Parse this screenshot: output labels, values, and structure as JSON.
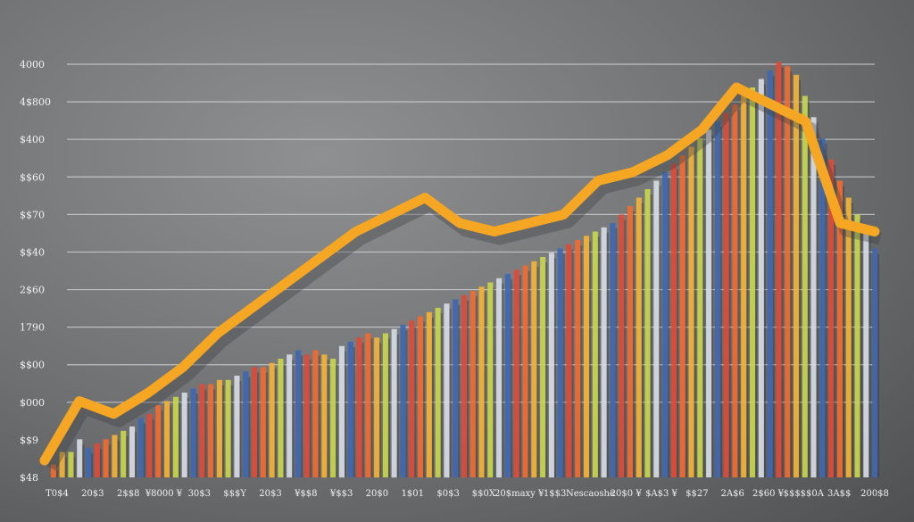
{
  "chart_data": {
    "type": "bar",
    "title": "",
    "xlabel": "",
    "ylabel": "",
    "grid": true,
    "legend": "none",
    "y_tick_labels": [
      "4000",
      "4$800",
      "$400",
      "$$60",
      "$$70",
      "$$40",
      "2$60",
      "1790",
      "$$00",
      "$000",
      "$$9",
      "$48"
    ],
    "x_tick_labels": [
      "T0$4",
      "20$3",
      "2$$8",
      "¥8000 ¥",
      "30$3",
      "$$$Y",
      "20$3",
      "¥$$8",
      "¥$$3",
      "20$0",
      "1$01",
      "$0$3",
      "$$0X",
      "20$maxy ¥",
      "1$$3",
      "Nescaoshe",
      "20$0 ¥",
      "$A$3 ¥",
      "$$27",
      "2A$6",
      "2$60 ¥",
      "$$$$$0A",
      "3A$$",
      "200$8"
    ],
    "colors": [
      "#f26a2e",
      "#f4b233",
      "#c8d64a",
      "#d6dbe4",
      "#3f67b1",
      "#e04a36"
    ],
    "trend_color": "#f5a623",
    "series": [
      {
        "type": "bar",
        "values": [
          3,
          6,
          6,
          9,
          7,
          8,
          9,
          10,
          11,
          12,
          14,
          15,
          17,
          18,
          19,
          20,
          21,
          22,
          22,
          23,
          23,
          24,
          25,
          26,
          26,
          27,
          28,
          29,
          30,
          29,
          30,
          29,
          28,
          31,
          32,
          33,
          34,
          33,
          34,
          35,
          36,
          37,
          38,
          39,
          40,
          41,
          42,
          43,
          44,
          45,
          46,
          47,
          48,
          49,
          50,
          51,
          52,
          53,
          54,
          55,
          56,
          57,
          58,
          59,
          60,
          62,
          64,
          66,
          68,
          70,
          72,
          74,
          76,
          78,
          80,
          82,
          84,
          86,
          88,
          90,
          92,
          94,
          96,
          98,
          97,
          95,
          90,
          85,
          80,
          75,
          70,
          66,
          62,
          58,
          54
        ]
      },
      {
        "type": "line",
        "values": [
          4,
          18,
          15,
          20,
          26,
          34,
          40,
          46,
          52,
          58,
          62,
          66,
          60,
          58,
          60,
          62,
          70,
          72,
          76,
          82,
          92,
          88,
          84,
          60,
          58
        ]
      }
    ]
  }
}
